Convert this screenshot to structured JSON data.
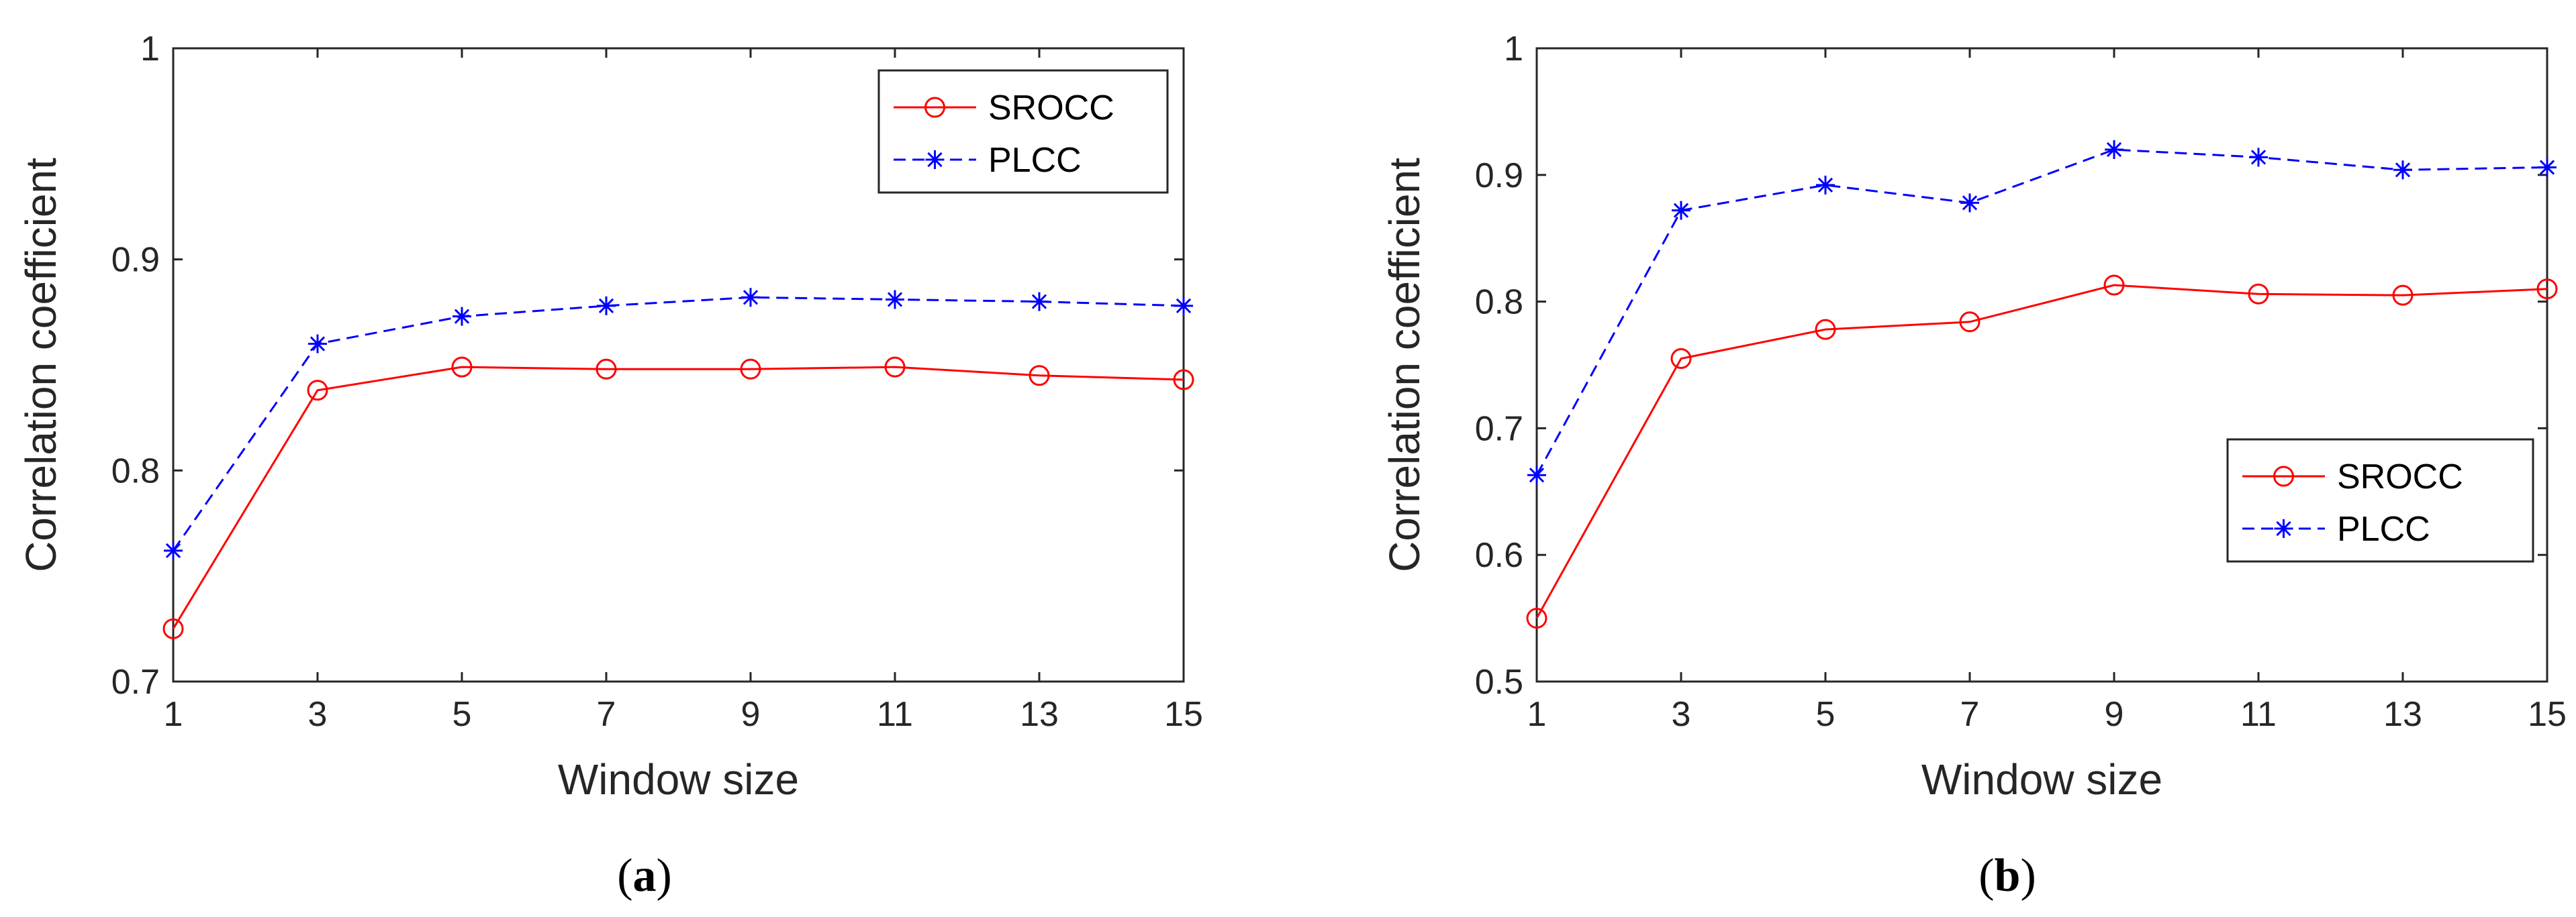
{
  "chart_data": [
    {
      "type": "line",
      "caption": "a",
      "xlabel": "Window size",
      "ylabel": "Correlation coefficient",
      "x": [
        1,
        3,
        5,
        7,
        9,
        11,
        13,
        15
      ],
      "xlim": [
        1,
        15
      ],
      "ylim": [
        0.7,
        1.0
      ],
      "xticks": [
        1,
        3,
        5,
        7,
        9,
        11,
        13,
        15
      ],
      "yticks": [
        0.7,
        0.8,
        0.9,
        1.0
      ],
      "ytick_labels": [
        "0.7",
        "0.8",
        "0.9",
        "1"
      ],
      "legend_position": "top-right",
      "series": [
        {
          "name": "SROCC",
          "values": [
            0.725,
            0.838,
            0.849,
            0.848,
            0.848,
            0.849,
            0.845,
            0.843
          ],
          "color": "#ff0000",
          "style": "solid",
          "marker": "circle"
        },
        {
          "name": "PLCC",
          "values": [
            0.762,
            0.86,
            0.873,
            0.878,
            0.882,
            0.881,
            0.88,
            0.878
          ],
          "color": "#0000ff",
          "style": "dashed",
          "marker": "asterisk"
        }
      ]
    },
    {
      "type": "line",
      "caption": "b",
      "xlabel": "Window size",
      "ylabel": "Correlation coefficient",
      "x": [
        1,
        3,
        5,
        7,
        9,
        11,
        13,
        15
      ],
      "xlim": [
        1,
        15
      ],
      "ylim": [
        0.5,
        1.0
      ],
      "xticks": [
        1,
        3,
        5,
        7,
        9,
        11,
        13,
        15
      ],
      "yticks": [
        0.5,
        0.6,
        0.7,
        0.8,
        0.9,
        1.0
      ],
      "ytick_labels": [
        "0.5",
        "0.6",
        "0.7",
        "0.8",
        "0.9",
        "1"
      ],
      "legend_position": "right",
      "series": [
        {
          "name": "SROCC",
          "values": [
            0.55,
            0.755,
            0.778,
            0.784,
            0.813,
            0.806,
            0.805,
            0.81
          ],
          "color": "#ff0000",
          "style": "solid",
          "marker": "circle"
        },
        {
          "name": "PLCC",
          "values": [
            0.663,
            0.872,
            0.892,
            0.878,
            0.92,
            0.914,
            0.904,
            0.906
          ],
          "color": "#0000ff",
          "style": "dashed",
          "marker": "asterisk"
        }
      ]
    }
  ]
}
